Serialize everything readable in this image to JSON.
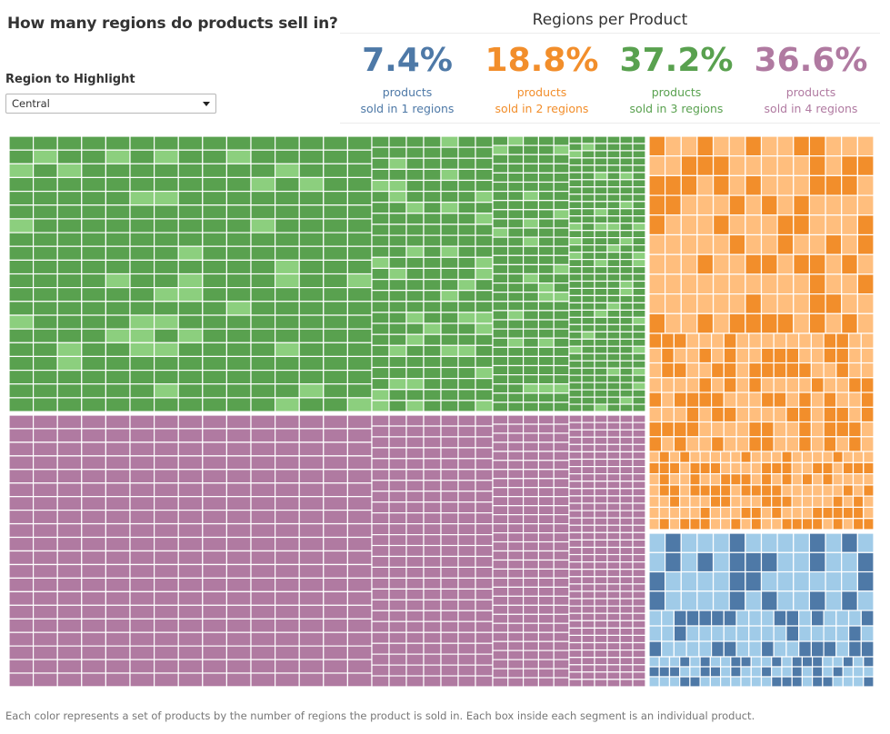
{
  "dashboard": {
    "title": "How many regions do products sell in?",
    "filter_label": "Region to Highlight",
    "filter_value": "Central",
    "kpi_title": "Regions per Product",
    "footnote": "Each color represents a set of products by the number of regions the product is sold in. Each box inside each segment is an individual product."
  },
  "kpis": [
    {
      "pct": "7.4%",
      "line1": "products",
      "line2": "sold in 1 regions",
      "color": "#4e79a7"
    },
    {
      "pct": "18.8%",
      "line1": "products",
      "line2": "sold in 2 regions",
      "color": "#f28e2b"
    },
    {
      "pct": "37.2%",
      "line1": "products",
      "line2": "sold in 3 regions",
      "color": "#59a14f"
    },
    {
      "pct": "36.6%",
      "line1": "products",
      "line2": "sold in 4 regions",
      "color": "#b07aa1"
    }
  ],
  "chart_data": {
    "type": "treemap",
    "title": "",
    "segments": [
      {
        "name": "sold in 3 regions",
        "share": 37.2,
        "base_color": "#59a14f",
        "highlight_color": "#8ccf7e",
        "highlight_ratio": 0.12
      },
      {
        "name": "sold in 4 regions",
        "share": 36.6,
        "base_color": "#b07aa1",
        "highlight_color": "#b07aa1",
        "highlight_ratio": 0
      },
      {
        "name": "sold in 2 regions",
        "share": 18.8,
        "base_color": "#f28e2b",
        "highlight_color": "#ffbe7d",
        "highlight_ratio": 0.55
      },
      {
        "name": "sold in 1 regions",
        "share": 7.4,
        "base_color": "#4e79a7",
        "highlight_color": "#a0cbe8",
        "highlight_ratio": 0.6
      }
    ]
  }
}
